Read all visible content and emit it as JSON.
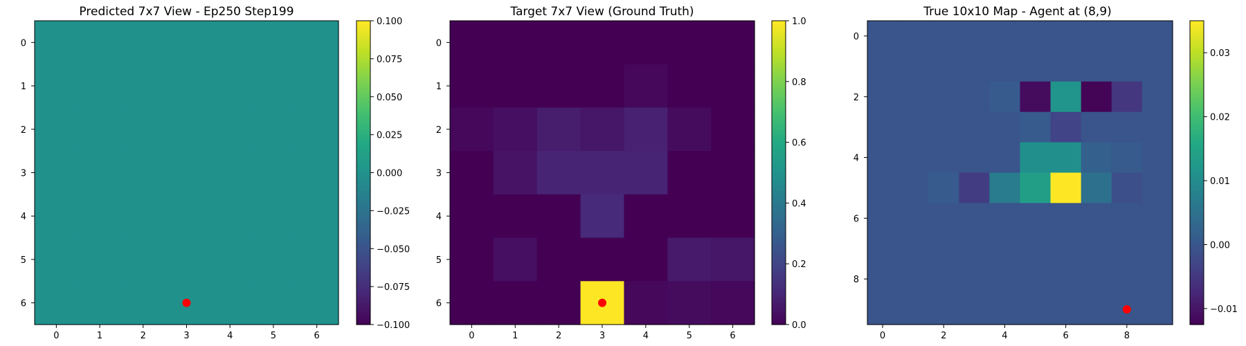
{
  "chart_data": [
    {
      "type": "heatmap",
      "title": "Predicted 7x7 View - Ep250 Step199",
      "rows": 7,
      "cols": 7,
      "x_ticks": [
        0,
        1,
        2,
        3,
        4,
        5,
        6
      ],
      "y_ticks": [
        0,
        1,
        2,
        3,
        4,
        5,
        6
      ],
      "values": [
        [
          0,
          0,
          0,
          0,
          0,
          0,
          0
        ],
        [
          0,
          0,
          0,
          0,
          0,
          0,
          0
        ],
        [
          0,
          0,
          0,
          0,
          0,
          0,
          0
        ],
        [
          0,
          0,
          0,
          0,
          0,
          0,
          0
        ],
        [
          0,
          0,
          0,
          0,
          0,
          0,
          0
        ],
        [
          0,
          0,
          0,
          0,
          0,
          0,
          0
        ],
        [
          0,
          0,
          0,
          0,
          0,
          0,
          0
        ]
      ],
      "vmin": -0.1,
      "vmax": 0.1,
      "colorbar_ticks": [
        "0.100",
        "0.075",
        "0.050",
        "0.025",
        "0.000",
        "−0.025",
        "−0.050",
        "−0.075",
        "−0.100"
      ],
      "colorbar_tick_values": [
        0.1,
        0.075,
        0.05,
        0.025,
        0.0,
        -0.025,
        -0.05,
        -0.075,
        -0.1
      ],
      "agent_marker": {
        "x": 3,
        "y": 6,
        "color": "#ff0000"
      },
      "colormap": "viridis"
    },
    {
      "type": "heatmap",
      "title": "Target 7x7 View (Ground Truth)",
      "rows": 7,
      "cols": 7,
      "x_ticks": [
        0,
        1,
        2,
        3,
        4,
        5,
        6
      ],
      "y_ticks": [
        0,
        1,
        2,
        3,
        4,
        5,
        6
      ],
      "values": [
        [
          0.0,
          0.0,
          0.0,
          0.0,
          0.0,
          0.0,
          0.0
        ],
        [
          0.0,
          0.0,
          0.0,
          0.0,
          0.02,
          0.0,
          0.0
        ],
        [
          0.02,
          0.04,
          0.08,
          0.06,
          0.09,
          0.03,
          0.0
        ],
        [
          0.0,
          0.05,
          0.1,
          0.1,
          0.1,
          0.0,
          0.0
        ],
        [
          0.0,
          0.0,
          0.0,
          0.12,
          0.0,
          0.0,
          0.0
        ],
        [
          0.0,
          0.04,
          0.0,
          0.0,
          0.0,
          0.07,
          0.06
        ],
        [
          0.0,
          0.0,
          0.0,
          1.0,
          0.02,
          0.03,
          0.02
        ]
      ],
      "vmin": 0.0,
      "vmax": 1.0,
      "colorbar_ticks": [
        "1.0",
        "0.8",
        "0.6",
        "0.4",
        "0.2",
        "0.0"
      ],
      "colorbar_tick_values": [
        1.0,
        0.8,
        0.6,
        0.4,
        0.2,
        0.0
      ],
      "agent_marker": {
        "x": 3,
        "y": 6,
        "color": "#ff0000"
      },
      "colormap": "viridis"
    },
    {
      "type": "heatmap",
      "title": "True 10x10 Map - Agent at (8,9)",
      "rows": 10,
      "cols": 10,
      "x_ticks": [
        0,
        2,
        4,
        6,
        8
      ],
      "y_ticks": [
        0,
        2,
        4,
        6,
        8
      ],
      "values": [
        [
          0,
          0,
          0,
          0,
          0,
          0,
          0,
          0,
          0,
          0
        ],
        [
          0,
          0,
          0,
          0,
          0,
          0,
          0,
          0,
          0,
          0
        ],
        [
          0,
          0,
          0,
          0,
          0.001,
          -0.011,
          0.012,
          -0.012,
          -0.005,
          0
        ],
        [
          0,
          0,
          0,
          0,
          0,
          0.001,
          -0.003,
          0,
          0,
          0
        ],
        [
          0,
          0,
          0,
          0,
          0,
          0.011,
          0.011,
          0.002,
          0.001,
          0
        ],
        [
          0,
          0,
          0.001,
          -0.004,
          0.007,
          0.014,
          0.035,
          0.005,
          -0.001,
          0
        ],
        [
          0,
          0,
          0,
          0,
          0,
          0,
          0,
          0,
          0,
          0
        ],
        [
          0,
          0,
          0,
          0,
          0,
          0,
          0,
          0,
          0,
          0
        ],
        [
          0,
          0,
          0,
          0,
          0,
          0,
          0,
          0,
          0,
          0
        ],
        [
          0,
          0,
          0,
          0,
          0,
          0,
          0,
          0,
          0,
          0
        ]
      ],
      "vmin": -0.0125,
      "vmax": 0.035,
      "colorbar_ticks": [
        "0.03",
        "0.02",
        "0.01",
        "0.00",
        "−0.01"
      ],
      "colorbar_tick_values": [
        0.03,
        0.02,
        0.01,
        0.0,
        -0.01
      ],
      "agent_marker": {
        "x": 8,
        "y": 9,
        "color": "#ff0000"
      },
      "colormap": "viridis"
    }
  ]
}
